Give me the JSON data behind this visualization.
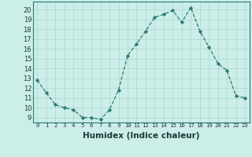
{
  "x": [
    0,
    1,
    2,
    3,
    4,
    5,
    6,
    7,
    8,
    9,
    10,
    11,
    12,
    13,
    14,
    15,
    16,
    17,
    18,
    19,
    20,
    21,
    22,
    23
  ],
  "y": [
    12.8,
    11.5,
    10.3,
    10.0,
    9.8,
    9.0,
    9.0,
    8.8,
    9.8,
    11.8,
    15.3,
    16.5,
    17.8,
    19.2,
    19.5,
    19.9,
    18.7,
    20.2,
    17.8,
    16.2,
    14.5,
    13.8,
    11.2,
    11.0
  ],
  "line_color": "#2d7a72",
  "marker_color": "#2d7a72",
  "bg_color": "#cceee8",
  "grid_color": "#aad6cf",
  "xlabel": "Humidex (Indice chaleur)",
  "xlabel_fontsize": 7.5,
  "ylabel_ticks": [
    9,
    10,
    11,
    12,
    13,
    14,
    15,
    16,
    17,
    18,
    19,
    20
  ],
  "xtick_labels": [
    "0",
    "1",
    "2",
    "3",
    "4",
    "5",
    "6",
    "7",
    "8",
    "9",
    "10",
    "11",
    "12",
    "13",
    "14",
    "15",
    "16",
    "17",
    "18",
    "19",
    "20",
    "21",
    "22",
    "23"
  ],
  "ylim": [
    8.5,
    20.8
  ],
  "xlim": [
    -0.5,
    23.5
  ]
}
